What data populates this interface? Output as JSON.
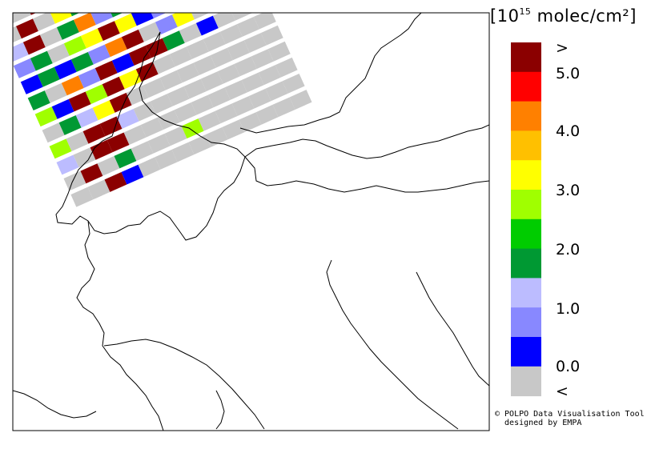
{
  "legend": {
    "unit_bracket_open": "[",
    "unit_base": "10",
    "unit_exp": "15",
    "unit_text": " molec/cm²",
    "unit_bracket_close": "]",
    "ticks": [
      ">",
      "5.0",
      "4.0",
      "3.0",
      "2.0",
      "1.0",
      "0.0",
      "<"
    ],
    "colors": [
      "#8b0000",
      "#ff0000",
      "#ff8000",
      "#ffc000",
      "#ffff00",
      "#a0ff00",
      "#00cc00",
      "#009933",
      "#bcbcff",
      "#8888ff",
      "#0000ff",
      "#c8c8c8"
    ]
  },
  "credit": {
    "line1": "© POLPO Data Visualisation Tool",
    "line2": "  designed by EMPA"
  },
  "swath": {
    "rows": [
      [
        "lg",
        "lg",
        "dr",
        "lg",
        "lg",
        "dr",
        "bl",
        "g",
        "lg",
        "lg",
        "lg",
        "lg",
        "lg",
        "lg"
      ],
      [
        "lg",
        "dr",
        "lg",
        "y",
        "dg",
        "dg",
        "y",
        "dg",
        "g",
        "lg",
        "dr",
        "lv",
        "y",
        "o"
      ],
      [
        "lv",
        "dr",
        "lg",
        "dg",
        "o",
        "mb",
        "dg",
        "lg",
        "lg",
        "o",
        "mb",
        "y",
        "lv",
        "lg"
      ],
      [
        "mb",
        "dg",
        "lg",
        "g",
        "y",
        "dr",
        "y",
        "bl",
        "mb",
        "lg",
        "lg",
        "dg",
        "y",
        "lg"
      ],
      [
        "bl",
        "dg",
        "bl",
        "dg",
        "mb",
        "o",
        "dr",
        "lg",
        "mb",
        "y",
        "lg",
        "lg",
        "lg",
        "lg"
      ],
      [
        "dg",
        "lg",
        "o",
        "mb",
        "dr",
        "bl",
        "dr",
        "dr",
        "dg",
        "lg",
        "bl",
        "lg",
        "lg",
        "lg"
      ],
      [
        "g",
        "bl",
        "dr",
        "g",
        "dr",
        "y",
        "dr",
        "lg",
        "lg",
        "lg",
        "lg",
        "lg",
        "lg",
        "lg"
      ],
      [
        "lg",
        "dg",
        "lv",
        "y",
        "dr",
        "lg",
        "lg",
        "lg",
        "lg",
        "lg",
        "lg",
        "lg",
        "lg",
        "lg"
      ],
      [
        "g",
        "lg",
        "dr",
        "dr",
        "lv",
        "lg",
        "lg",
        "lg",
        "lg",
        "lg",
        "lg",
        "lg",
        "lg",
        "lg"
      ],
      [
        "lv",
        "lg",
        "dr",
        "dr",
        "lg",
        "lg",
        "lg",
        "lg",
        "lg",
        "lg",
        "lg",
        "lg",
        "lg",
        "lg"
      ],
      [
        "lg",
        "dr",
        "lg",
        "dg",
        "lg",
        "lg",
        "lg",
        "g",
        "lg",
        "lg",
        "lg",
        "lg",
        "lg",
        "lg"
      ],
      [
        "lg",
        "lg",
        "dr",
        "bl",
        "lg",
        "lg",
        "lg",
        "lg",
        "lg",
        "lg",
        "lg",
        "lg",
        "lg",
        "lg"
      ]
    ],
    "palette": {
      "dr": "#8b0000",
      "o": "#ff8000",
      "y": "#ffff00",
      "g": "#a0ff00",
      "dg": "#009933",
      "lv": "#bcbcff",
      "mb": "#8888ff",
      "bl": "#0000ff",
      "lg": "#c8c8c8"
    }
  }
}
